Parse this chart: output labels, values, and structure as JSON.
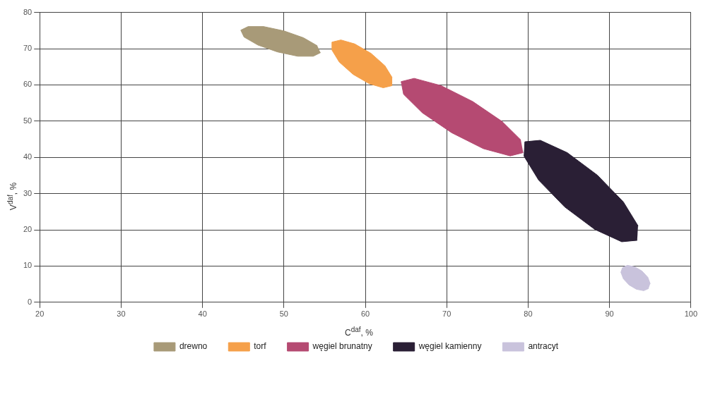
{
  "chart_data": {
    "type": "area",
    "xlabel": "C$^{daf}$, %",
    "ylabel": "V$^{daf}$, %",
    "xlim": [
      20,
      100
    ],
    "xticks": [
      20,
      30,
      40,
      50,
      60,
      70,
      80,
      90,
      100
    ],
    "ylim": [
      0,
      80
    ],
    "yticks": [
      0,
      10,
      20,
      30,
      40,
      50,
      60,
      70,
      80
    ],
    "grid": true,
    "legend": "bottom",
    "marker": "none",
    "series": [
      {
        "name": "drewno",
        "color": "#a89a78",
        "x": [
          54.5,
          53.6,
          51.7,
          49.2,
          46.8,
          45.1,
          44.7,
          45.6,
          47.5,
          50.0,
          52.4,
          54.1
        ],
        "values": [
          68.9,
          67.9,
          67.9,
          69.1,
          71.0,
          73.2,
          75.1,
          76.1,
          76.1,
          74.9,
          73.0,
          70.8
        ]
      },
      {
        "name": "torf",
        "color": "#f5a04a",
        "x": [
          63.3,
          62.2,
          60.5,
          58.5,
          56.8,
          55.9,
          55.9,
          57.0,
          58.7,
          60.7,
          62.4,
          63.3
        ],
        "values": [
          59.8,
          59.2,
          60.3,
          62.9,
          66.3,
          69.6,
          71.8,
          72.4,
          71.3,
          68.7,
          65.3,
          62.0
        ]
      },
      {
        "name": "węgiel brunatny",
        "color": "#b54a72",
        "x": [
          79.4,
          77.8,
          74.5,
          70.6,
          67.0,
          64.7,
          64.4,
          66.0,
          69.3,
          73.2,
          76.8,
          79.1
        ],
        "values": [
          41.3,
          40.4,
          42.4,
          46.8,
          52.3,
          57.4,
          60.9,
          61.8,
          59.8,
          55.4,
          49.9,
          44.8
        ]
      },
      {
        "name": "węgiel kamienny",
        "color": "#2a1f35",
        "x": [
          93.4,
          91.5,
          88.2,
          84.5,
          81.3,
          79.5,
          79.6,
          81.5,
          84.8,
          88.5,
          91.7,
          93.5
        ],
        "values": [
          17.1,
          16.7,
          20.1,
          26.3,
          33.7,
          40.3,
          44.3,
          44.7,
          41.3,
          35.1,
          27.7,
          21.1
        ]
      },
      {
        "name": "antracyt",
        "color": "#c9c3dc",
        "x": [
          94.8,
          94.2,
          93.3,
          92.4,
          91.7,
          91.4,
          91.6,
          92.2,
          93.1,
          94.0,
          94.7,
          95.0
        ],
        "values": [
          3.8,
          3.2,
          3.6,
          4.8,
          6.5,
          8.3,
          9.6,
          10.2,
          9.8,
          8.6,
          6.9,
          5.1
        ]
      }
    ]
  }
}
